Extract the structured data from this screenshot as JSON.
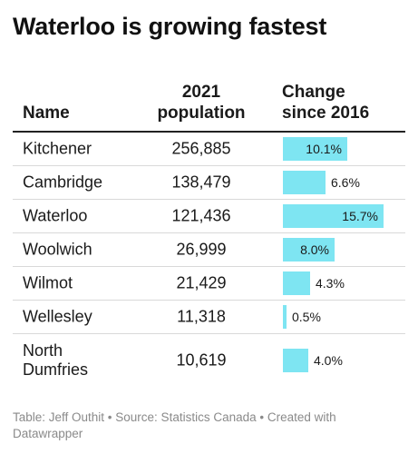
{
  "title": "Waterloo is growing fastest",
  "columns": {
    "name": "Name",
    "population": [
      "2021",
      "population"
    ],
    "change": [
      "Change",
      "since 2016"
    ]
  },
  "chart_data": {
    "type": "table",
    "title": "Waterloo is growing fastest",
    "columns": [
      "Name",
      "2021 population",
      "Change since 2016"
    ],
    "xlim": [
      0,
      16
    ],
    "rows": [
      {
        "name": [
          "Kitchener"
        ],
        "population": "256,885",
        "change": 10.1,
        "change_label": "10.1%"
      },
      {
        "name": [
          "Cambridge"
        ],
        "population": "138,479",
        "change": 6.6,
        "change_label": "6.6%"
      },
      {
        "name": [
          "Waterloo"
        ],
        "population": "121,436",
        "change": 15.7,
        "change_label": "15.7%"
      },
      {
        "name": [
          "Woolwich"
        ],
        "population": "26,999",
        "change": 8.0,
        "change_label": "8.0%"
      },
      {
        "name": [
          "Wilmot"
        ],
        "population": "21,429",
        "change": 4.3,
        "change_label": "4.3%"
      },
      {
        "name": [
          "Wellesley"
        ],
        "population": "11,318",
        "change": 0.5,
        "change_label": "0.5%"
      },
      {
        "name": [
          "North",
          "Dumfries"
        ],
        "population": "10,619",
        "change": 4.0,
        "change_label": "4.0%"
      }
    ]
  },
  "colors": {
    "bar": "#7ee5f2"
  },
  "footer": {
    "text": "Table: Jeff Outhit • Source: Statistics Canada • Created with Datawrapper"
  }
}
